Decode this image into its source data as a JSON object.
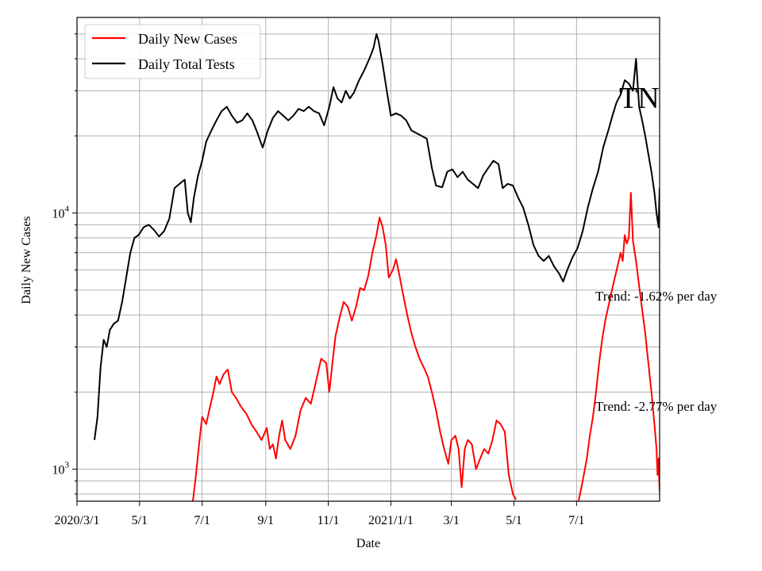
{
  "chart_data": {
    "type": "line",
    "ylabel": "Daily New Cases",
    "xlabel": "Date",
    "yscale": "log",
    "ylim": [
      750,
      58000
    ],
    "xlim": [
      "2020-03-01",
      "2021-09-20"
    ],
    "grid": true,
    "legend": "top-left",
    "x_ticks": [
      {
        "date": "2020-03-01",
        "label": "2020/3/1"
      },
      {
        "date": "2020-05-01",
        "label": "5/1"
      },
      {
        "date": "2020-07-01",
        "label": "7/1"
      },
      {
        "date": "2020-09-01",
        "label": "9/1"
      },
      {
        "date": "2020-11-01",
        "label": "11/1"
      },
      {
        "date": "2021-01-01",
        "label": "2021/1/1"
      },
      {
        "date": "2021-03-01",
        "label": "3/1"
      },
      {
        "date": "2021-05-01",
        "label": "5/1"
      },
      {
        "date": "2021-07-01",
        "label": "7/1"
      }
    ],
    "y_ticks": [
      {
        "value": 1000,
        "base": "10",
        "exp": "3"
      },
      {
        "value": 10000,
        "base": "10",
        "exp": "4"
      }
    ],
    "series": [
      {
        "name": "Daily New Cases",
        "color": "#ff0000",
        "points": [
          [
            "2020-06-22",
            750
          ],
          [
            "2020-06-25",
            950
          ],
          [
            "2020-06-28",
            1250
          ],
          [
            "2020-07-01",
            1600
          ],
          [
            "2020-07-05",
            1500
          ],
          [
            "2020-07-08",
            1700
          ],
          [
            "2020-07-12",
            2000
          ],
          [
            "2020-07-15",
            2300
          ],
          [
            "2020-07-18",
            2150
          ],
          [
            "2020-07-22",
            2350
          ],
          [
            "2020-07-26",
            2450
          ],
          [
            "2020-07-30",
            2000
          ],
          [
            "2020-08-03",
            1900
          ],
          [
            "2020-08-08",
            1750
          ],
          [
            "2020-08-13",
            1650
          ],
          [
            "2020-08-18",
            1500
          ],
          [
            "2020-08-23",
            1400
          ],
          [
            "2020-08-28",
            1300
          ],
          [
            "2020-09-02",
            1450
          ],
          [
            "2020-09-05",
            1200
          ],
          [
            "2020-09-08",
            1250
          ],
          [
            "2020-09-11",
            1100
          ],
          [
            "2020-09-14",
            1350
          ],
          [
            "2020-09-17",
            1550
          ],
          [
            "2020-09-20",
            1300
          ],
          [
            "2020-09-25",
            1200
          ],
          [
            "2020-09-30",
            1350
          ],
          [
            "2020-10-05",
            1700
          ],
          [
            "2020-10-10",
            1900
          ],
          [
            "2020-10-15",
            1800
          ],
          [
            "2020-10-20",
            2200
          ],
          [
            "2020-10-25",
            2700
          ],
          [
            "2020-10-30",
            2600
          ],
          [
            "2020-11-02",
            2000
          ],
          [
            "2020-11-05",
            2600
          ],
          [
            "2020-11-08",
            3300
          ],
          [
            "2020-11-12",
            3900
          ],
          [
            "2020-11-16",
            4500
          ],
          [
            "2020-11-20",
            4300
          ],
          [
            "2020-11-24",
            3800
          ],
          [
            "2020-11-28",
            4300
          ],
          [
            "2020-12-02",
            5100
          ],
          [
            "2020-12-06",
            5000
          ],
          [
            "2020-12-10",
            5700
          ],
          [
            "2020-12-14",
            7000
          ],
          [
            "2020-12-18",
            8200
          ],
          [
            "2020-12-21",
            9600
          ],
          [
            "2020-12-24",
            8800
          ],
          [
            "2020-12-27",
            7500
          ],
          [
            "2020-12-30",
            5600
          ],
          [
            "2021-01-03",
            6000
          ],
          [
            "2021-01-06",
            6600
          ],
          [
            "2021-01-09",
            5800
          ],
          [
            "2021-01-13",
            4800
          ],
          [
            "2021-01-17",
            4000
          ],
          [
            "2021-01-21",
            3400
          ],
          [
            "2021-01-25",
            3000
          ],
          [
            "2021-01-29",
            2700
          ],
          [
            "2021-02-02",
            2500
          ],
          [
            "2021-02-06",
            2300
          ],
          [
            "2021-02-10",
            2000
          ],
          [
            "2021-02-14",
            1700
          ],
          [
            "2021-02-18",
            1400
          ],
          [
            "2021-02-22",
            1200
          ],
          [
            "2021-02-26",
            1050
          ],
          [
            "2021-03-01",
            1300
          ],
          [
            "2021-03-05",
            1350
          ],
          [
            "2021-03-08",
            1200
          ],
          [
            "2021-03-11",
            850
          ],
          [
            "2021-03-14",
            1200
          ],
          [
            "2021-03-17",
            1300
          ],
          [
            "2021-03-21",
            1250
          ],
          [
            "2021-03-25",
            1000
          ],
          [
            "2021-03-29",
            1100
          ],
          [
            "2021-04-02",
            1200
          ],
          [
            "2021-04-06",
            1150
          ],
          [
            "2021-04-10",
            1300
          ],
          [
            "2021-04-14",
            1550
          ],
          [
            "2021-04-18",
            1500
          ],
          [
            "2021-04-22",
            1400
          ],
          [
            "2021-04-26",
            950
          ],
          [
            "2021-04-30",
            800
          ],
          [
            "2021-05-03",
            760
          ]
        ]
      },
      {
        "name": "Daily New Cases (2nd segment)",
        "color": "#ff0000",
        "points": [
          [
            "2021-07-03",
            750
          ],
          [
            "2021-07-07",
            900
          ],
          [
            "2021-07-11",
            1100
          ],
          [
            "2021-07-14",
            1350
          ],
          [
            "2021-07-17",
            1600
          ],
          [
            "2021-07-20",
            2000
          ],
          [
            "2021-07-23",
            2600
          ],
          [
            "2021-07-26",
            3200
          ],
          [
            "2021-07-29",
            3800
          ],
          [
            "2021-08-02",
            4500
          ],
          [
            "2021-08-06",
            5300
          ],
          [
            "2021-08-10",
            6200
          ],
          [
            "2021-08-13",
            7000
          ],
          [
            "2021-08-15",
            6500
          ],
          [
            "2021-08-17",
            8200
          ],
          [
            "2021-08-19",
            7600
          ],
          [
            "2021-08-21",
            8000
          ],
          [
            "2021-08-23",
            12000
          ],
          [
            "2021-08-25",
            7800
          ],
          [
            "2021-08-28",
            6500
          ],
          [
            "2021-08-31",
            5200
          ],
          [
            "2021-09-03",
            4200
          ],
          [
            "2021-09-06",
            3400
          ],
          [
            "2021-09-09",
            2600
          ],
          [
            "2021-09-12",
            2000
          ],
          [
            "2021-09-15",
            1500
          ],
          [
            "2021-09-17",
            1200
          ],
          [
            "2021-09-18",
            950
          ],
          [
            "2021-09-19",
            1100
          ],
          [
            "2021-09-20",
            820
          ]
        ]
      },
      {
        "name": "Daily Total Tests",
        "color": "#000000",
        "points": [
          [
            "2020-03-18",
            1300
          ],
          [
            "2020-03-21",
            1600
          ],
          [
            "2020-03-24",
            2500
          ],
          [
            "2020-03-27",
            3200
          ],
          [
            "2020-03-30",
            3000
          ],
          [
            "2020-04-02",
            3500
          ],
          [
            "2020-04-06",
            3700
          ],
          [
            "2020-04-10",
            3800
          ],
          [
            "2020-04-14",
            4500
          ],
          [
            "2020-04-18",
            5600
          ],
          [
            "2020-04-22",
            7000
          ],
          [
            "2020-04-26",
            8000
          ],
          [
            "2020-04-30",
            8200
          ],
          [
            "2020-05-05",
            8800
          ],
          [
            "2020-05-10",
            9000
          ],
          [
            "2020-05-15",
            8600
          ],
          [
            "2020-05-20",
            8100
          ],
          [
            "2020-05-25",
            8500
          ],
          [
            "2020-05-30",
            9500
          ],
          [
            "2020-06-04",
            12500
          ],
          [
            "2020-06-09",
            13000
          ],
          [
            "2020-06-14",
            13500
          ],
          [
            "2020-06-17",
            10000
          ],
          [
            "2020-06-20",
            9200
          ],
          [
            "2020-06-23",
            11500
          ],
          [
            "2020-06-27",
            14000
          ],
          [
            "2020-07-01",
            16000
          ],
          [
            "2020-07-05",
            19000
          ],
          [
            "2020-07-10",
            21000
          ],
          [
            "2020-07-15",
            23000
          ],
          [
            "2020-07-20",
            25000
          ],
          [
            "2020-07-25",
            26000
          ],
          [
            "2020-07-30",
            24000
          ],
          [
            "2020-08-04",
            22500
          ],
          [
            "2020-08-09",
            23000
          ],
          [
            "2020-08-14",
            24500
          ],
          [
            "2020-08-19",
            23000
          ],
          [
            "2020-08-24",
            20500
          ],
          [
            "2020-08-29",
            18000
          ],
          [
            "2020-09-03",
            21000
          ],
          [
            "2020-09-08",
            23500
          ],
          [
            "2020-09-13",
            25000
          ],
          [
            "2020-09-18",
            24000
          ],
          [
            "2020-09-23",
            23000
          ],
          [
            "2020-09-28",
            24000
          ],
          [
            "2020-10-03",
            25500
          ],
          [
            "2020-10-08",
            25000
          ],
          [
            "2020-10-13",
            26000
          ],
          [
            "2020-10-18",
            25000
          ],
          [
            "2020-10-23",
            24500
          ],
          [
            "2020-10-28",
            22000
          ],
          [
            "2020-11-02",
            26000
          ],
          [
            "2020-11-06",
            31000
          ],
          [
            "2020-11-10",
            28000
          ],
          [
            "2020-11-14",
            27000
          ],
          [
            "2020-11-18",
            30000
          ],
          [
            "2020-11-22",
            28000
          ],
          [
            "2020-11-26",
            29500
          ],
          [
            "2020-12-01",
            33000
          ],
          [
            "2020-12-06",
            36000
          ],
          [
            "2020-12-11",
            40000
          ],
          [
            "2020-12-15",
            44000
          ],
          [
            "2020-12-18",
            50000
          ],
          [
            "2020-12-20",
            47000
          ],
          [
            "2020-12-24",
            38000
          ],
          [
            "2020-12-28",
            30000
          ],
          [
            "2021-01-01",
            24000
          ],
          [
            "2021-01-06",
            24500
          ],
          [
            "2021-01-11",
            24000
          ],
          [
            "2021-01-16",
            23000
          ],
          [
            "2021-01-21",
            21000
          ],
          [
            "2021-01-26",
            20500
          ],
          [
            "2021-01-31",
            20000
          ],
          [
            "2021-02-05",
            19500
          ],
          [
            "2021-02-10",
            15000
          ],
          [
            "2021-02-14",
            12800
          ],
          [
            "2021-02-20",
            12600
          ],
          [
            "2021-02-25",
            14500
          ],
          [
            "2021-03-02",
            14800
          ],
          [
            "2021-03-07",
            13800
          ],
          [
            "2021-03-12",
            14500
          ],
          [
            "2021-03-17",
            13500
          ],
          [
            "2021-03-22",
            13000
          ],
          [
            "2021-03-27",
            12500
          ],
          [
            "2021-04-01",
            14000
          ],
          [
            "2021-04-06",
            15000
          ],
          [
            "2021-04-11",
            16000
          ],
          [
            "2021-04-16",
            15500
          ],
          [
            "2021-04-20",
            12500
          ],
          [
            "2021-04-25",
            13000
          ],
          [
            "2021-04-30",
            12800
          ],
          [
            "2021-05-05",
            11500
          ],
          [
            "2021-05-10",
            10500
          ],
          [
            "2021-05-15",
            9000
          ],
          [
            "2021-05-20",
            7500
          ],
          [
            "2021-05-25",
            6800
          ],
          [
            "2021-05-30",
            6500
          ],
          [
            "2021-06-04",
            6800
          ],
          [
            "2021-06-09",
            6200
          ],
          [
            "2021-06-14",
            5800
          ],
          [
            "2021-06-18",
            5400
          ],
          [
            "2021-06-22",
            6000
          ],
          [
            "2021-06-27",
            6700
          ],
          [
            "2021-07-02",
            7300
          ],
          [
            "2021-07-07",
            8500
          ],
          [
            "2021-07-12",
            10500
          ],
          [
            "2021-07-17",
            12500
          ],
          [
            "2021-07-22",
            14500
          ],
          [
            "2021-07-27",
            18000
          ],
          [
            "2021-08-01",
            21000
          ],
          [
            "2021-08-05",
            24000
          ],
          [
            "2021-08-09",
            27000
          ],
          [
            "2021-08-13",
            29000
          ],
          [
            "2021-08-17",
            33000
          ],
          [
            "2021-08-21",
            32000
          ],
          [
            "2021-08-25",
            30000
          ],
          [
            "2021-08-28",
            40000
          ],
          [
            "2021-08-31",
            26000
          ],
          [
            "2021-09-03",
            23000
          ],
          [
            "2021-09-06",
            20000
          ],
          [
            "2021-09-09",
            17000
          ],
          [
            "2021-09-12",
            14500
          ],
          [
            "2021-09-15",
            12000
          ],
          [
            "2021-09-17",
            10000
          ],
          [
            "2021-09-19",
            8800
          ],
          [
            "2021-09-20",
            12500
          ]
        ]
      }
    ],
    "legend_entries": [
      {
        "label": "Daily New Cases",
        "color": "#ff0000"
      },
      {
        "label": "Daily Total Tests",
        "color": "#000000"
      }
    ],
    "annotations": {
      "corner_label": "TN",
      "trend_tests": "Trend: -1.62% per day",
      "trend_cases": "Trend: -2.77% per day"
    }
  }
}
